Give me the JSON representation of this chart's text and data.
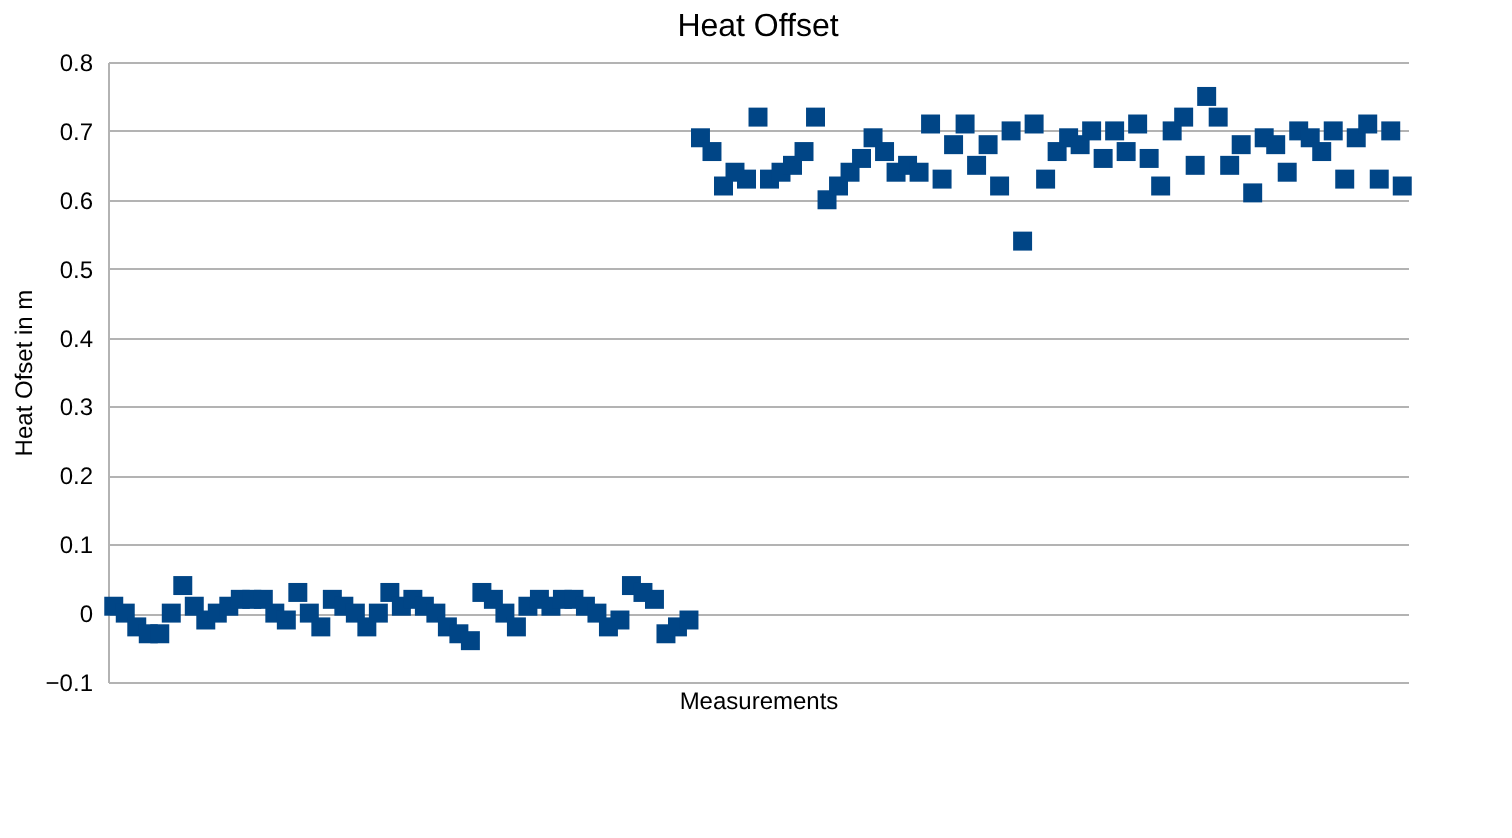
{
  "chart_data": {
    "type": "scatter",
    "title": "Heat Offset",
    "xlabel": "Measurements",
    "ylabel": "Heat Ofset in m",
    "categories": [
      null,
      null,
      null,
      null,
      null,
      null,
      null,
      null,
      null,
      null,
      null,
      null,
      null,
      null,
      null,
      null,
      null,
      null,
      null,
      null,
      null,
      null,
      null,
      null,
      null,
      null,
      null,
      null,
      null,
      null,
      null,
      null,
      null,
      null,
      null,
      null,
      null,
      null,
      null,
      null,
      null,
      null,
      null,
      null,
      null,
      null,
      null,
      null,
      null,
      null,
      null,
      null,
      null,
      null,
      null,
      null,
      null,
      null,
      null,
      null,
      null,
      null,
      null,
      null,
      null,
      null,
      null,
      null,
      null,
      null,
      null,
      null,
      null,
      null,
      null,
      null,
      null,
      null,
      null,
      null,
      null,
      null,
      null,
      null,
      null,
      null,
      null,
      null,
      null,
      null,
      null,
      null,
      null,
      null,
      null,
      null,
      null,
      null,
      null,
      null,
      null,
      null,
      null,
      null,
      null,
      null,
      null,
      null,
      null,
      null,
      null,
      null,
      null
    ],
    "series": [
      {
        "color": "#004586",
        "values": [
          0.01,
          0.0,
          -0.02,
          -0.03,
          -0.03,
          0.0,
          0.04,
          0.01,
          -0.01,
          0.0,
          0.01,
          0.02,
          0.02,
          0.02,
          0.0,
          -0.01,
          0.03,
          0.0,
          -0.02,
          0.02,
          0.01,
          0.0,
          -0.02,
          0.0,
          0.03,
          0.01,
          0.02,
          0.01,
          0.0,
          -0.02,
          -0.03,
          -0.04,
          0.03,
          0.02,
          0.0,
          -0.02,
          0.01,
          0.02,
          0.01,
          0.02,
          0.02,
          0.01,
          0.0,
          -0.02,
          -0.01,
          0.04,
          0.03,
          0.02,
          -0.03,
          -0.02,
          -0.01,
          0.69,
          0.67,
          0.62,
          0.64,
          0.63,
          0.72,
          0.63,
          0.64,
          0.65,
          0.67,
          0.72,
          0.6,
          0.62,
          0.64,
          0.66,
          0.69,
          0.67,
          0.64,
          0.65,
          0.64,
          0.71,
          0.63,
          0.68,
          0.71,
          0.65,
          0.68,
          0.62,
          0.7,
          0.54,
          0.71,
          0.63,
          0.67,
          0.69,
          0.68,
          0.7,
          0.66,
          0.7,
          0.67,
          0.71,
          0.66,
          0.62,
          0.7,
          0.72,
          0.65,
          0.75,
          0.72,
          0.65,
          0.68,
          0.61,
          0.69,
          0.68,
          0.64,
          0.7,
          0.69,
          0.67,
          0.7,
          0.63,
          0.69,
          0.71,
          0.63,
          0.7,
          0.62
        ]
      }
    ],
    "ylim": [
      -0.1,
      0.8
    ],
    "yticks": [
      -0.1,
      0,
      0.1,
      0.2,
      0.3,
      0.4,
      0.5,
      0.6,
      0.7,
      0.8
    ],
    "grid": "y",
    "marker": "square",
    "legend": false
  }
}
